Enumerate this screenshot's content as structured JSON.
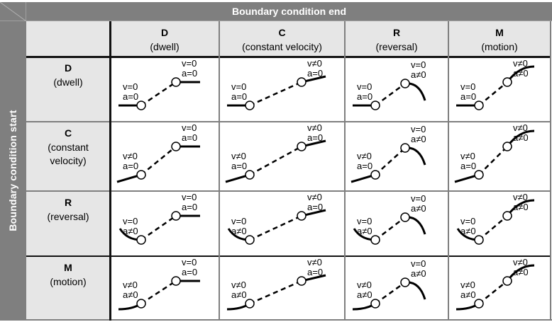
{
  "title": "Boundary condition end",
  "side_title": "Boundary condition start",
  "columns": [
    {
      "key": "D",
      "sub": "(dwell)"
    },
    {
      "key": "C",
      "sub": "(constant velocity)"
    },
    {
      "key": "R",
      "sub": "(reversal)"
    },
    {
      "key": "M",
      "sub": "(motion)"
    }
  ],
  "rows": [
    {
      "key": "D",
      "sub": "(dwell)"
    },
    {
      "key": "C",
      "sub": "(constant velocity)"
    },
    {
      "key": "R",
      "sub": "(reversal)"
    },
    {
      "key": "M",
      "sub": "(motion)"
    }
  ],
  "cells": [
    [
      {
        "start_v": "v=0",
        "start_a": "a=0",
        "end_v": "v=0",
        "end_a": "a=0"
      },
      {
        "start_v": "v=0",
        "start_a": "a=0",
        "end_v": "v≠0",
        "end_a": "a=0"
      },
      {
        "start_v": "v=0",
        "start_a": "a=0",
        "end_v": "v=0",
        "end_a": "a≠0"
      },
      {
        "start_v": "v=0",
        "start_a": "a=0",
        "end_v": "v≠0",
        "end_a": "a≠0"
      }
    ],
    [
      {
        "start_v": "v≠0",
        "start_a": "a=0",
        "end_v": "v=0",
        "end_a": "a=0"
      },
      {
        "start_v": "v≠0",
        "start_a": "a=0",
        "end_v": "v≠0",
        "end_a": "a=0"
      },
      {
        "start_v": "v≠0",
        "start_a": "a=0",
        "end_v": "v=0",
        "end_a": "a≠0"
      },
      {
        "start_v": "v≠0",
        "start_a": "a=0",
        "end_v": "v≠0",
        "end_a": "a≠0"
      }
    ],
    [
      {
        "start_v": "v=0",
        "start_a": "a≠0",
        "end_v": "v=0",
        "end_a": "a=0"
      },
      {
        "start_v": "v=0",
        "start_a": "a≠0",
        "end_v": "v≠0",
        "end_a": "a=0"
      },
      {
        "start_v": "v=0",
        "start_a": "a≠0",
        "end_v": "v=0",
        "end_a": "a≠0"
      },
      {
        "start_v": "v=0",
        "start_a": "a≠0",
        "end_v": "v≠0",
        "end_a": "a≠0"
      }
    ],
    [
      {
        "start_v": "v≠0",
        "start_a": "a≠0",
        "end_v": "v=0",
        "end_a": "a=0"
      },
      {
        "start_v": "v≠0",
        "start_a": "a≠0",
        "end_v": "v≠0",
        "end_a": "a=0"
      },
      {
        "start_v": "v≠0",
        "start_a": "a≠0",
        "end_v": "v=0",
        "end_a": "a≠0"
      },
      {
        "start_v": "v≠0",
        "start_a": "a≠0",
        "end_v": "v≠0",
        "end_a": "a≠0"
      }
    ]
  ],
  "colors": {
    "header_bg": "#7f7f7f",
    "label_bg": "#e6e6e6",
    "grid": "#7f7f7f",
    "curve": "#000000"
  }
}
